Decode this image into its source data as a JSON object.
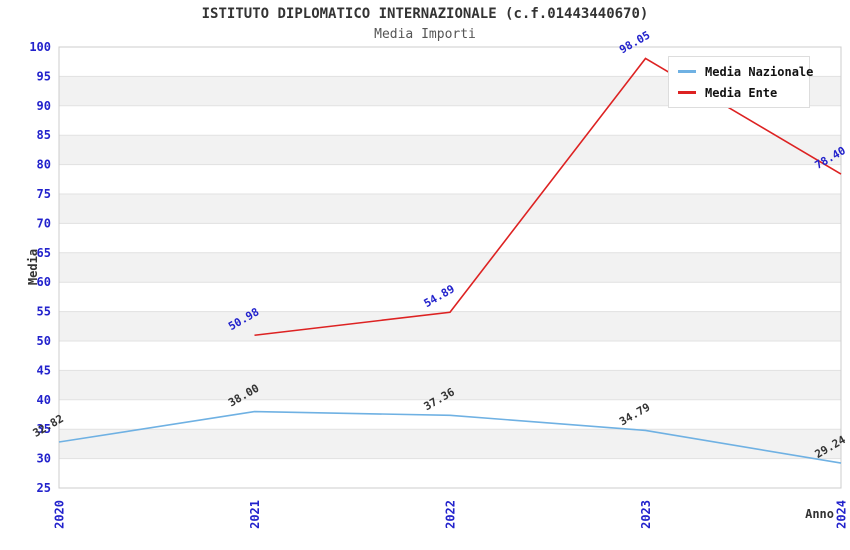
{
  "chart_data": {
    "type": "line",
    "title": "ISTITUTO DIPLOMATICO INTERNAZIONALE (c.f.01443440670)",
    "subtitle": "Media Importi",
    "xlabel": "Anno",
    "ylabel": "Media",
    "categories": [
      "2020",
      "2021",
      "2022",
      "2023",
      "2024"
    ],
    "series": [
      {
        "name": "Media Nazionale",
        "color": "#6fb1e3",
        "label_color": "#333333",
        "values": [
          32.82,
          38.0,
          37.36,
          34.79,
          29.24
        ]
      },
      {
        "name": "Media Ente",
        "color": "#dd2222",
        "label_color": "#2222cc",
        "values": [
          null,
          50.98,
          54.89,
          98.05,
          78.4
        ]
      }
    ],
    "ylim": [
      25,
      100
    ],
    "ytick_step": 5,
    "grid": true,
    "banded_background": true,
    "legend_position": "top-right",
    "colors": {
      "tick_label": "#2222cc",
      "band_fill": "#f2f2f2",
      "gridline": "#e1e1e1",
      "frame": "#cccccc",
      "title_text": "#333333"
    }
  }
}
